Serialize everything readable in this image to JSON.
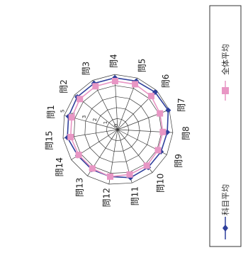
{
  "chart_data": {
    "type": "radar",
    "categories": [
      "問1",
      "問2",
      "問3",
      "問4",
      "問5",
      "問6",
      "問7",
      "問8",
      "問9",
      "問10",
      "問11",
      "問12",
      "問13",
      "問14",
      "問15"
    ],
    "axis_ticks": [
      "0",
      "1",
      "2",
      "3",
      "4",
      "5"
    ],
    "rlim": [
      0,
      5
    ],
    "grid": true,
    "legend_position": "right",
    "series": [
      {
        "name": "科目平均",
        "color": "#2e3f9c",
        "marker": "diamond",
        "values": [
          4.6,
          4.7,
          4.7,
          4.7,
          4.7,
          4.8,
          4.9,
          4.5,
          4.4,
          4.4,
          4.5,
          4.3,
          4.3,
          4.3,
          4.6
        ]
      },
      {
        "name": "全体平均",
        "color": "#e896c4",
        "marker": "square",
        "values": [
          4.3,
          4.4,
          4.4,
          4.4,
          4.4,
          4.3,
          4.1,
          4.1,
          4.1,
          4.2,
          4.2,
          4.3,
          4.2,
          4.2,
          4.3
        ]
      }
    ]
  }
}
